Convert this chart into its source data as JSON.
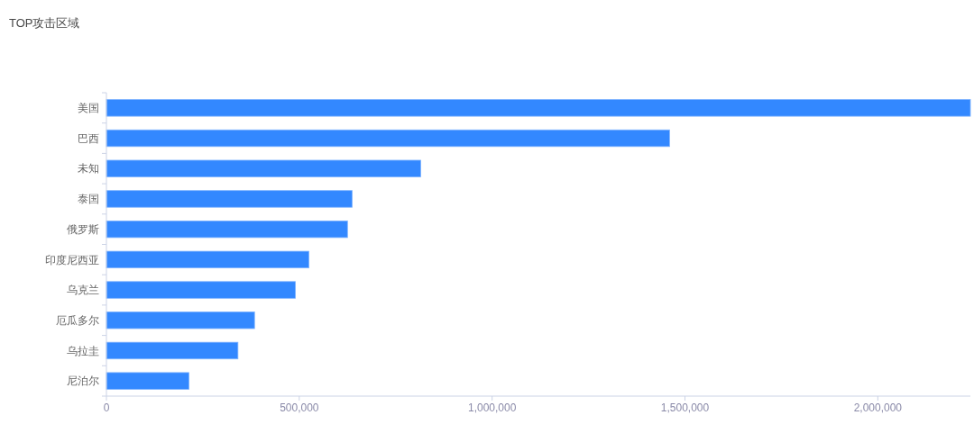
{
  "chart_data": {
    "type": "bar",
    "orientation": "horizontal",
    "title": "TOP攻击区域",
    "categories": [
      "美国",
      "巴西",
      "未知",
      "泰国",
      "俄罗斯",
      "印度尼西亚",
      "乌克兰",
      "厄瓜多尔",
      "乌拉圭",
      "尼泊尔"
    ],
    "values": [
      2240000,
      1460000,
      815000,
      637000,
      625000,
      525000,
      490000,
      384000,
      341000,
      214000
    ],
    "color": "#3388ff",
    "xlim": [
      0,
      2240000
    ],
    "xticks": [
      0,
      {
        "value": 500000,
        "label": "500,000"
      },
      {
        "value": 1000000,
        "label": "1,000,000"
      },
      {
        "value": 1500000,
        "label": "1,500,000"
      },
      {
        "value": 2000000,
        "label": "2,000,000"
      }
    ]
  }
}
